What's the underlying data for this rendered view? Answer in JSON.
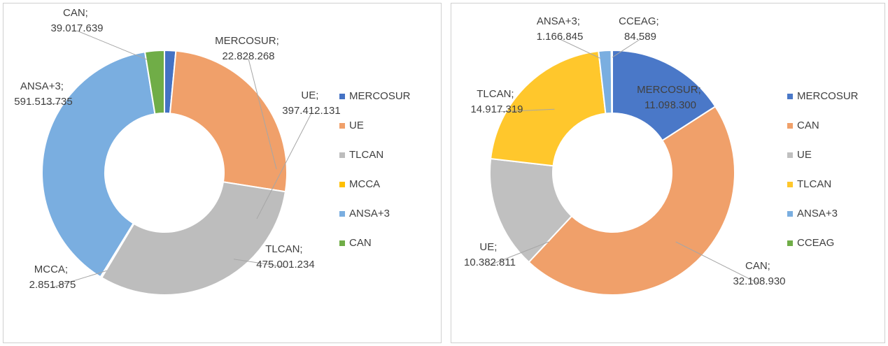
{
  "chart_data": [
    {
      "type": "pie",
      "donut": true,
      "categories": [
        "MERCOSUR",
        "UE",
        "TLCAN",
        "MCCA",
        "ANSA+3",
        "CAN"
      ],
      "values": [
        22828268,
        397412131,
        475001234,
        2851875,
        591513735,
        39017639
      ],
      "value_labels": [
        "MERCOSUR; 22.828.268",
        "UE; 397.412.131",
        "TLCAN; 475.001.234",
        "MCCA; 2.851.875",
        "ANSA+3; 591.513.735",
        "CAN; 39.017.639"
      ],
      "colors": [
        "#4472c4",
        "#f0a06a",
        "#bdbdbd",
        "#ffc000",
        "#7aaee0",
        "#70ad47"
      ],
      "legend": "right"
    },
    {
      "type": "pie",
      "donut": true,
      "categories": [
        "MERCOSUR",
        "CAN",
        "UE",
        "TLCAN",
        "ANSA+3",
        "CCEAG"
      ],
      "values": [
        11098300,
        32108930,
        10382811,
        14917319,
        1166845,
        84589
      ],
      "value_labels": [
        "MERCOSUR; 11.098.300",
        "CAN; 32.108.930",
        "UE; 10.382.811",
        "TLCAN; 14.917.319",
        "ANSA+3; 1.166.845",
        "CCEAG; 84.589"
      ],
      "colors": [
        "#4a78c8",
        "#f0a06a",
        "#c0c0c0",
        "#ffc72c",
        "#7aaee0",
        "#70ad47"
      ],
      "legend": "right"
    }
  ]
}
